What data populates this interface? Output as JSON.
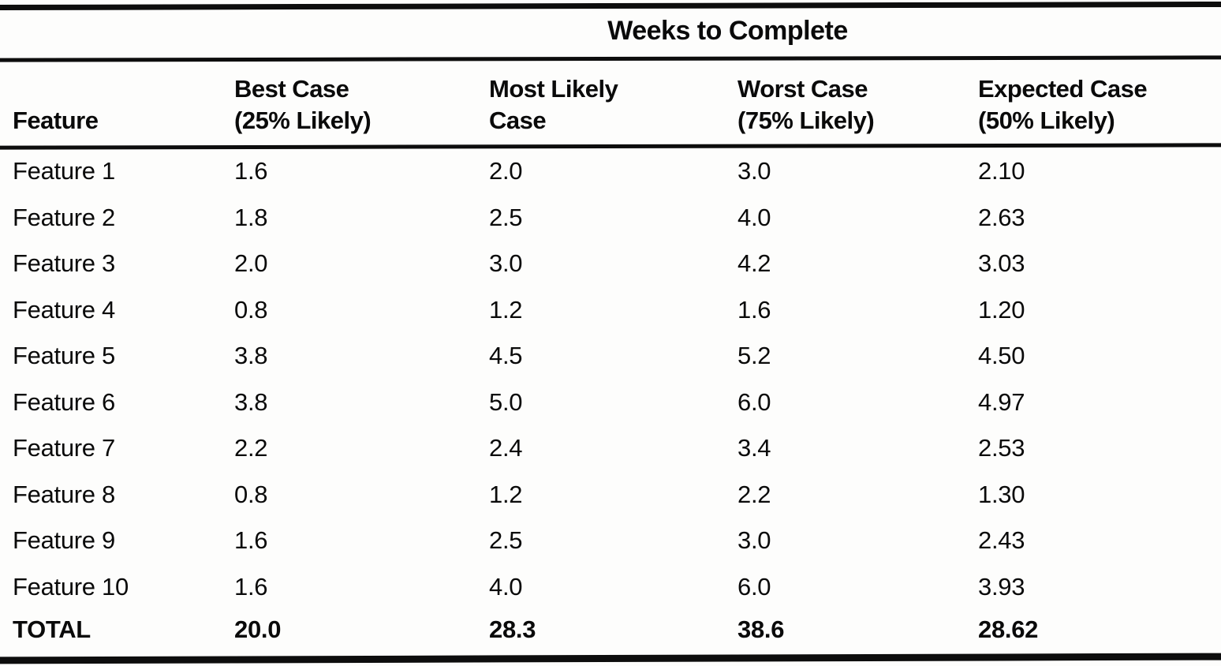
{
  "table": {
    "spanner_title": "Weeks to Complete",
    "columns": [
      {
        "id": "feature",
        "label": "Feature"
      },
      {
        "id": "best",
        "label": "Best Case\n(25% Likely)"
      },
      {
        "id": "most_likely",
        "label": "Most Likely\nCase"
      },
      {
        "id": "worst",
        "label": "Worst Case\n(75% Likely)"
      },
      {
        "id": "expected",
        "label": "Expected Case\n(50% Likely)"
      }
    ],
    "rows": [
      {
        "feature": "Feature 1",
        "best": "1.6",
        "most_likely": "2.0",
        "worst": "3.0",
        "expected": "2.10"
      },
      {
        "feature": "Feature 2",
        "best": "1.8",
        "most_likely": "2.5",
        "worst": "4.0",
        "expected": "2.63"
      },
      {
        "feature": "Feature 3",
        "best": "2.0",
        "most_likely": "3.0",
        "worst": "4.2",
        "expected": "3.03"
      },
      {
        "feature": "Feature 4",
        "best": "0.8",
        "most_likely": "1.2",
        "worst": "1.6",
        "expected": "1.20"
      },
      {
        "feature": "Feature 5",
        "best": "3.8",
        "most_likely": "4.5",
        "worst": "5.2",
        "expected": "4.50"
      },
      {
        "feature": "Feature 6",
        "best": "3.8",
        "most_likely": "5.0",
        "worst": "6.0",
        "expected": "4.97"
      },
      {
        "feature": "Feature 7",
        "best": "2.2",
        "most_likely": "2.4",
        "worst": "3.4",
        "expected": "2.53"
      },
      {
        "feature": "Feature 8",
        "best": "0.8",
        "most_likely": "1.2",
        "worst": "2.2",
        "expected": "1.30"
      },
      {
        "feature": "Feature 9",
        "best": "1.6",
        "most_likely": "2.5",
        "worst": "3.0",
        "expected": "2.43"
      },
      {
        "feature": "Feature 10",
        "best": "1.6",
        "most_likely": "4.0",
        "worst": "6.0",
        "expected": "3.93"
      }
    ],
    "total_row": {
      "feature": "TOTAL",
      "best": "20.0",
      "most_likely": "28.3",
      "worst": "38.6",
      "expected": "28.62"
    }
  }
}
